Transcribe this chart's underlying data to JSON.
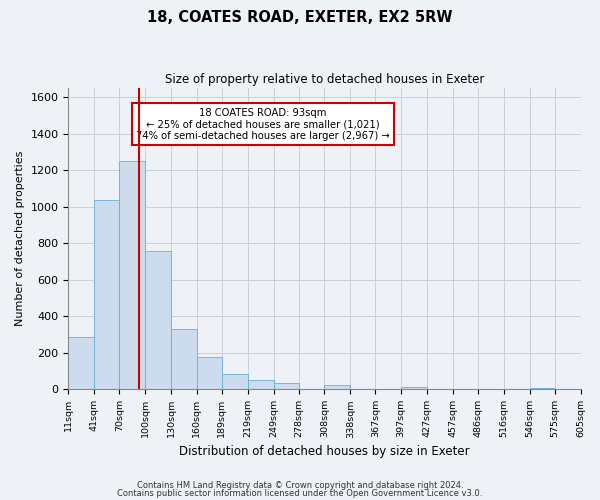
{
  "title": "18, COATES ROAD, EXETER, EX2 5RW",
  "subtitle": "Size of property relative to detached houses in Exeter",
  "xlabel": "Distribution of detached houses by size in Exeter",
  "ylabel": "Number of detached properties",
  "bar_color": "#ccdcec",
  "bar_edge_color": "#6aadd5",
  "vline_color": "#cc0000",
  "vline_x": 93,
  "bin_edges": [
    11,
    41,
    70,
    100,
    130,
    160,
    189,
    219,
    249,
    278,
    308,
    338,
    367,
    397,
    427,
    457,
    486,
    516,
    546,
    575,
    605
  ],
  "bin_labels": [
    "11sqm",
    "41sqm",
    "70sqm",
    "100sqm",
    "130sqm",
    "160sqm",
    "189sqm",
    "219sqm",
    "249sqm",
    "278sqm",
    "308sqm",
    "338sqm",
    "367sqm",
    "397sqm",
    "427sqm",
    "457sqm",
    "486sqm",
    "516sqm",
    "546sqm",
    "575sqm",
    "605sqm"
  ],
  "bar_heights": [
    285,
    1035,
    1250,
    755,
    330,
    175,
    85,
    50,
    35,
    0,
    25,
    0,
    0,
    15,
    0,
    0,
    0,
    0,
    10,
    0
  ],
  "ylim": [
    0,
    1650
  ],
  "yticks": [
    0,
    200,
    400,
    600,
    800,
    1000,
    1200,
    1400,
    1600
  ],
  "annotation_title": "18 COATES ROAD: 93sqm",
  "annotation_line1": "← 25% of detached houses are smaller (1,021)",
  "annotation_line2": "74% of semi-detached houses are larger (2,967) →",
  "footer1": "Contains HM Land Registry data © Crown copyright and database right 2024.",
  "footer2": "Contains public sector information licensed under the Open Government Licence v3.0.",
  "background_color": "#eef2f7",
  "plot_background": "#eef2f7",
  "grid_color": "#c8d0da"
}
